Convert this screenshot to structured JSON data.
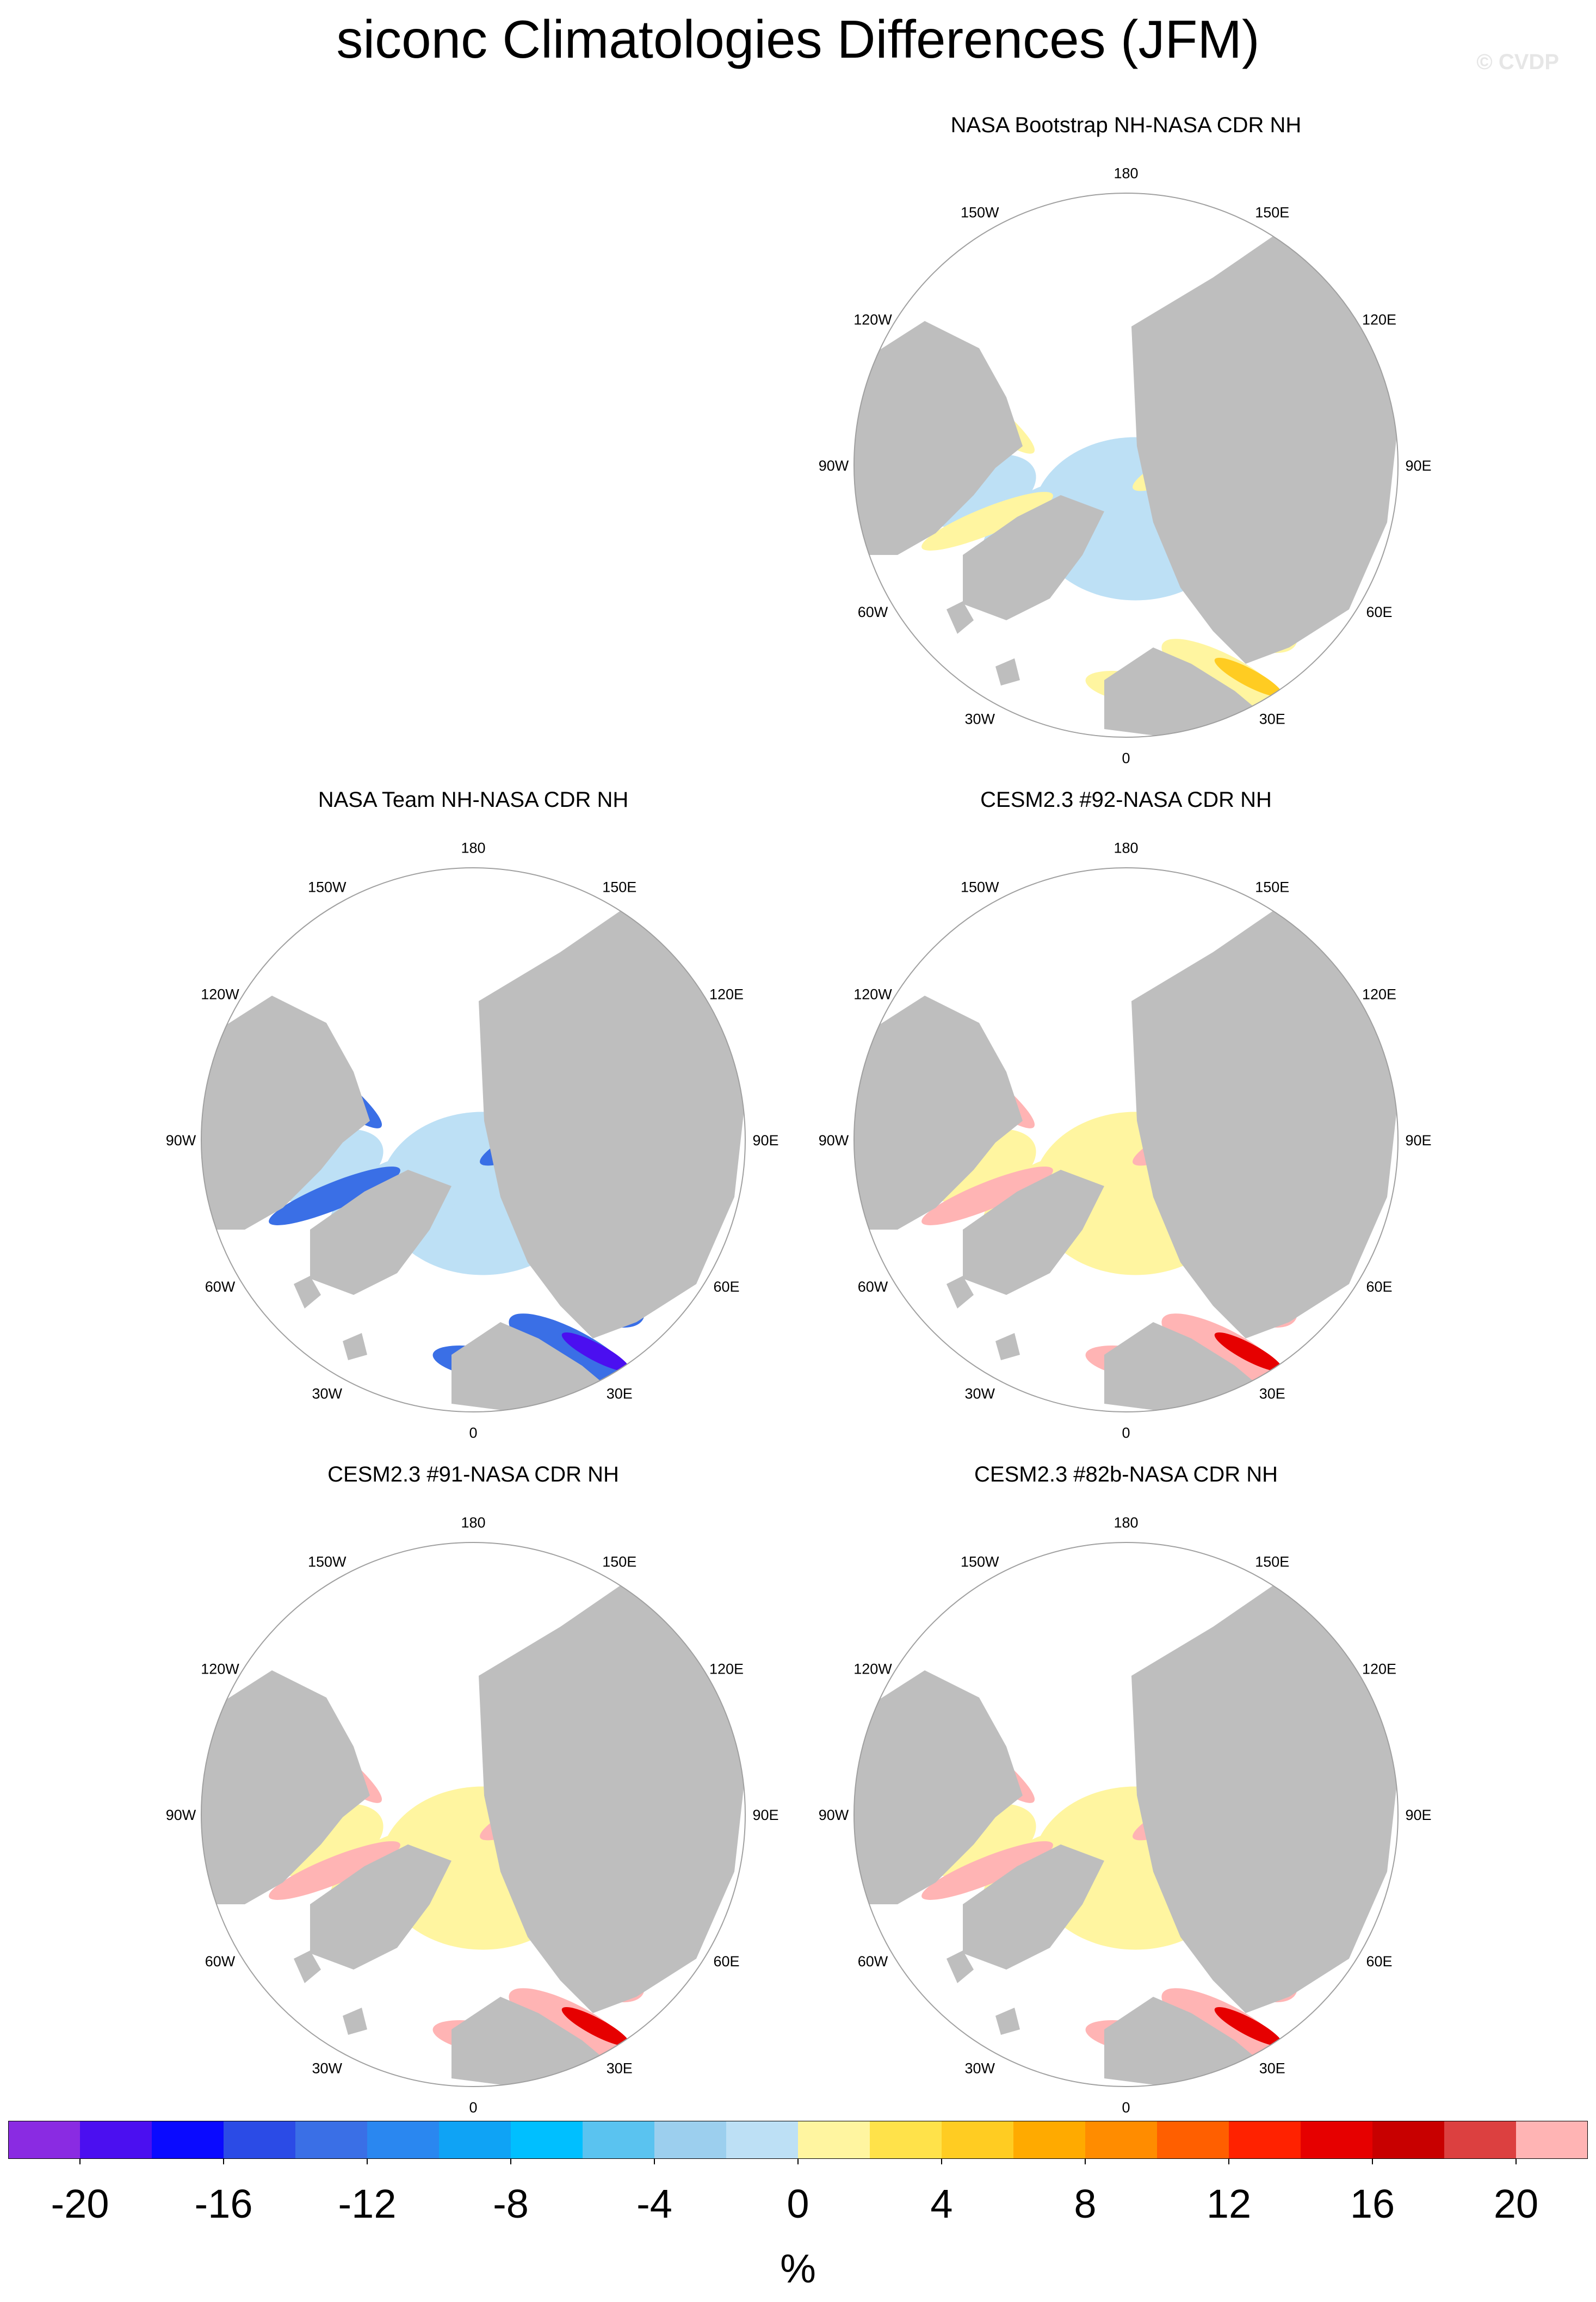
{
  "title": "siconc Climatologies Differences (JFM)",
  "credit": "© CVDP",
  "units": "%",
  "colors": {
    "land": "#bebebe",
    "ocean": "#ffffff",
    "boundary": "#a0a0a0"
  },
  "longitude_labels": [
    "180",
    "150E",
    "120E",
    "90E",
    "60E",
    "30E",
    "0",
    "30W",
    "60W",
    "90W",
    "120W",
    "150W"
  ],
  "colorbar": {
    "colors": [
      "#8a2be2",
      "#4b0ff0",
      "#0a0aff",
      "#2b4be6",
      "#3a6fe6",
      "#2a87f0",
      "#0fa3f5",
      "#00bfff",
      "#5ac3f0",
      "#9ccfee",
      "#bde0f5",
      "#fff5a0",
      "#ffe24a",
      "#ffcc22",
      "#ffaa00",
      "#ff8c00",
      "#ff5f00",
      "#ff2200",
      "#e60000",
      "#c80000",
      "#dc4040",
      "#ffb4b4"
    ],
    "tick_labels": [
      "-20",
      "-16",
      "-12",
      "-8",
      "-4",
      "0",
      "4",
      "8",
      "12",
      "16",
      "20"
    ]
  },
  "chart_data": [
    {
      "type": "heatmap",
      "projection": "north polar stereographic",
      "title": "NASA Bootstrap NH-NASA CDR NH",
      "pattern": "small differences: -2 to 0 % over central Arctic and Canadian Archipelago; 0 to 2 % along ice edge (Bering Sea, Labrador Sea, Greenland-Barents)",
      "colors": {
        "interior": "#bde0f5",
        "edge": "#fff5a0",
        "accent": "#ffcc22"
      }
    },
    {
      "type": "heatmap",
      "projection": "north polar stereographic",
      "title": "NASA Team NH-NASA CDR NH",
      "pattern": "negative differences: -2 to 0 % in central Arctic, -8 to -20 % along ice edge (Bering/Okhotsk, Labrador Sea, Greenland Sea)",
      "colors": {
        "interior": "#bde0f5",
        "edge": "#3a6fe6",
        "accent": "#4b0ff0"
      }
    },
    {
      "type": "heatmap",
      "projection": "north polar stereographic",
      "title": "CESM2.3 #92-NASA CDR NH",
      "pattern": "positive differences: 0 to 2 % in central Arctic, 12 to >20 % along ice edge (Okhotsk, Bering, Labrador, Barents)",
      "colors": {
        "interior": "#fff5a0",
        "edge": "#ffb4b4",
        "accent": "#e60000"
      }
    },
    {
      "type": "heatmap",
      "projection": "north polar stereographic",
      "title": "CESM2.3 #91-NASA CDR NH",
      "pattern": "positive differences: 0 to 2 % in central Arctic, 12 to >20 % along ice edge (Okhotsk, Bering, Labrador, Barents)",
      "colors": {
        "interior": "#fff5a0",
        "edge": "#ffb4b4",
        "accent": "#e60000"
      }
    },
    {
      "type": "heatmap",
      "projection": "north polar stereographic",
      "title": "CESM2.3 #82b-NASA CDR NH",
      "pattern": "positive differences: 0 to 2 % in central Arctic, 12 to >20 % along ice edge (Okhotsk, Bering, Labrador, Barents)",
      "colors": {
        "interior": "#fff5a0",
        "edge": "#ffb4b4",
        "accent": "#e60000"
      }
    }
  ]
}
